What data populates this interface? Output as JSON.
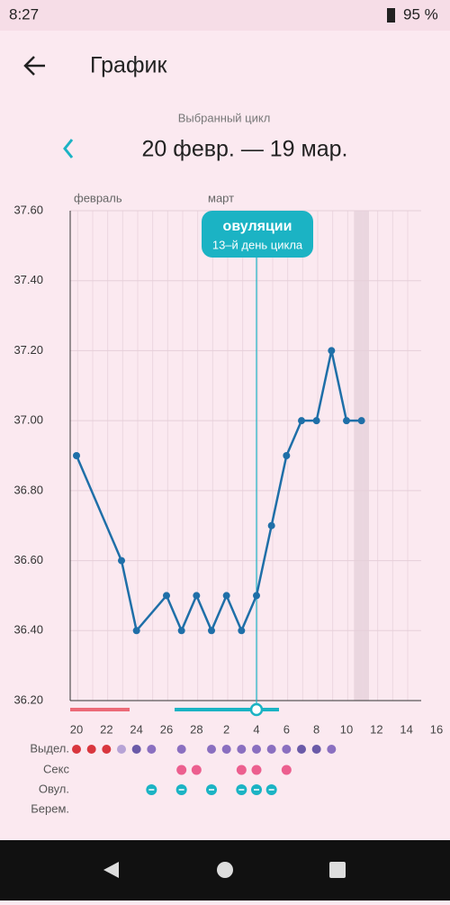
{
  "status_bar": {
    "time": "8:27",
    "battery": "95 %"
  },
  "header": {
    "title": "График"
  },
  "cycle": {
    "caption": "Выбранный цикл",
    "range": "20 февр. — 19 мар."
  },
  "chart_data": {
    "type": "line",
    "color": "#1f6fa8",
    "months": [
      "февраль",
      "март"
    ],
    "annotation": {
      "title": "овуляции",
      "subtitle": "13–й день цикла"
    },
    "x": [
      0,
      3,
      4,
      6,
      7,
      8,
      9,
      10,
      11,
      12,
      13,
      14,
      15,
      16,
      17,
      18,
      19
    ],
    "values": [
      36.9,
      36.6,
      36.4,
      36.5,
      36.4,
      36.5,
      36.4,
      36.5,
      36.4,
      36.5,
      36.7,
      36.9,
      37.0,
      37.0,
      37.2,
      37.0,
      37.0
    ],
    "xlim": [
      0,
      24
    ],
    "xticks": [
      {
        "value": 0,
        "label": "20"
      },
      {
        "value": 2,
        "label": "22"
      },
      {
        "value": 4,
        "label": "24"
      },
      {
        "value": 6,
        "label": "26"
      },
      {
        "value": 8,
        "label": "28"
      },
      {
        "value": 10,
        "label": "2"
      },
      {
        "value": 12,
        "label": "4"
      },
      {
        "value": 14,
        "label": "6"
      },
      {
        "value": 16,
        "label": "8"
      },
      {
        "value": 18,
        "label": "10"
      },
      {
        "value": 20,
        "label": "12"
      },
      {
        "value": 22,
        "label": "14"
      },
      {
        "value": 24,
        "label": "16"
      }
    ],
    "ylim": [
      36.2,
      37.6
    ],
    "yticks": [
      {
        "value": 36.2,
        "label": "36.20"
      },
      {
        "value": 36.4,
        "label": "36.40"
      },
      {
        "value": 36.6,
        "label": "36.60"
      },
      {
        "value": 36.8,
        "label": "36.80"
      },
      {
        "value": 37.0,
        "label": "37.00"
      },
      {
        "value": 37.2,
        "label": "37.20"
      },
      {
        "value": 37.4,
        "label": "37.40"
      },
      {
        "value": 37.6,
        "label": "37.60"
      }
    ],
    "grid": true,
    "rows": [
      "Выдел.",
      "Секс",
      "Овул.",
      "Берем."
    ]
  }
}
